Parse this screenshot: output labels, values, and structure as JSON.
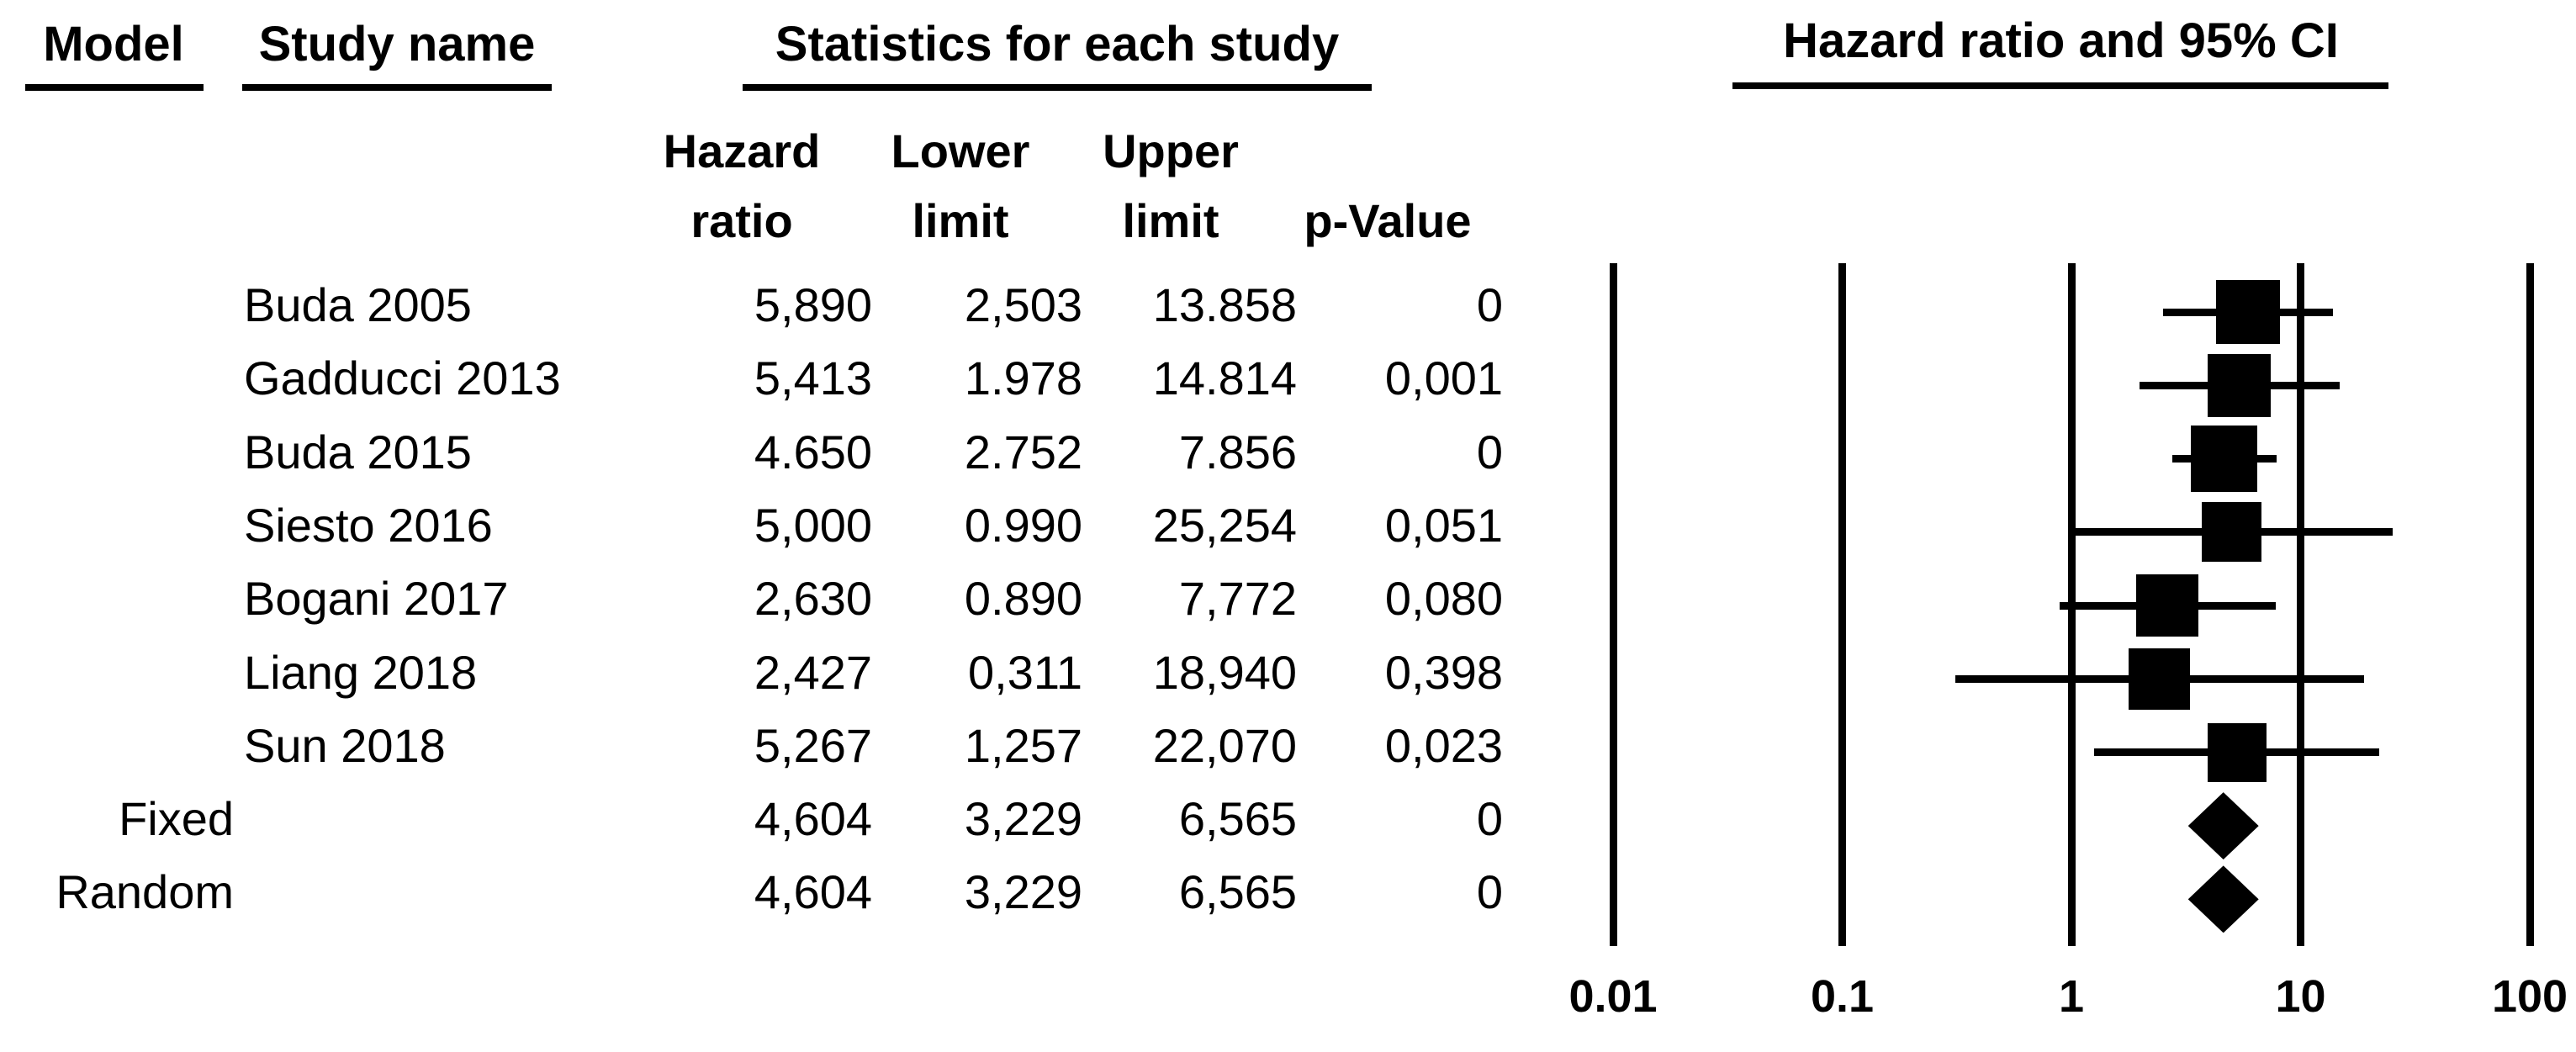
{
  "figure": {
    "background": "#ffffff",
    "ink": "#000000"
  },
  "table": {
    "headers": {
      "model": "Model",
      "study_name": "Study name",
      "statistics_group": "Statistics for each study",
      "hazard_line1": "Hazard",
      "hazard_line2": "ratio",
      "lower_line1": "Lower",
      "lower_line2": "limit",
      "upper_line1": "Upper",
      "upper_line2": "limit",
      "p_value": "p-Value"
    },
    "rows": [
      {
        "model": "",
        "study": "Buda 2005",
        "hr": "5,890",
        "lower": "2,503",
        "upper": "13.858",
        "p": "0"
      },
      {
        "model": "",
        "study": "Gadducci 2013",
        "hr": "5,413",
        "lower": "1.978",
        "upper": "14.814",
        "p": "0,001"
      },
      {
        "model": "",
        "study": "Buda 2015",
        "hr": "4.650",
        "lower": "2.752",
        "upper": "7.856",
        "p": "0"
      },
      {
        "model": "",
        "study": "Siesto 2016",
        "hr": "5,000",
        "lower": "0.990",
        "upper": "25,254",
        "p": "0,051"
      },
      {
        "model": "",
        "study": "Bogani 2017",
        "hr": "2,630",
        "lower": "0.890",
        "upper": "7,772",
        "p": "0,080"
      },
      {
        "model": "",
        "study": "Liang 2018",
        "hr": "2,427",
        "lower": "0,311",
        "upper": "18,940",
        "p": "0,398"
      },
      {
        "model": "",
        "study": "Sun 2018",
        "hr": "5,267",
        "lower": "1,257",
        "upper": "22,070",
        "p": "0,023"
      },
      {
        "model": "Fixed",
        "study": "",
        "hr": "4,604",
        "lower": "3,229",
        "upper": "6,565",
        "p": "0"
      },
      {
        "model": "Random",
        "study": "",
        "hr": "4,604",
        "lower": "3,229",
        "upper": "6,565",
        "p": "0"
      }
    ]
  },
  "chart_data": {
    "type": "forest",
    "title": "Hazard ratio and 95% CI",
    "x_scale": "log10",
    "x_range": [
      0.01,
      100
    ],
    "axis_ticks": [
      0.01,
      0.1,
      1,
      10,
      100
    ],
    "axis_tick_labels": [
      "0.01",
      "0.1",
      "1",
      "10",
      "100"
    ],
    "grid": "vertical-lines-at-ticks",
    "marker_color": "#000000",
    "studies": [
      {
        "name": "Buda 2005",
        "hr": 5.89,
        "lower": 2.503,
        "upper": 13.858,
        "p": 0,
        "marker": "square",
        "marker_size": 76
      },
      {
        "name": "Gadducci 2013",
        "hr": 5.413,
        "lower": 1.978,
        "upper": 14.814,
        "p": 0.001,
        "marker": "square",
        "marker_size": 75
      },
      {
        "name": "Buda 2015",
        "hr": 4.65,
        "lower": 2.752,
        "upper": 7.856,
        "p": 0,
        "marker": "square",
        "marker_size": 79
      },
      {
        "name": "Siesto 2016",
        "hr": 5.0,
        "lower": 0.99,
        "upper": 25.254,
        "p": 0.051,
        "marker": "square",
        "marker_size": 71
      },
      {
        "name": "Bogani 2017",
        "hr": 2.63,
        "lower": 0.89,
        "upper": 7.772,
        "p": 0.08,
        "marker": "square",
        "marker_size": 74
      },
      {
        "name": "Liang 2018",
        "hr": 2.427,
        "lower": 0.311,
        "upper": 18.94,
        "p": 0.398,
        "marker": "square",
        "marker_size": 73
      },
      {
        "name": "Sun 2018",
        "hr": 5.267,
        "lower": 1.257,
        "upper": 22.07,
        "p": 0.023,
        "marker": "square",
        "marker_size": 70
      },
      {
        "name": "Fixed",
        "hr": 4.604,
        "lower": 3.229,
        "upper": 6.565,
        "p": 0,
        "marker": "diamond",
        "marker_size": 80
      },
      {
        "name": "Random",
        "hr": 4.604,
        "lower": 3.229,
        "upper": 6.565,
        "p": 0,
        "marker": "diamond",
        "marker_size": 80
      }
    ]
  }
}
